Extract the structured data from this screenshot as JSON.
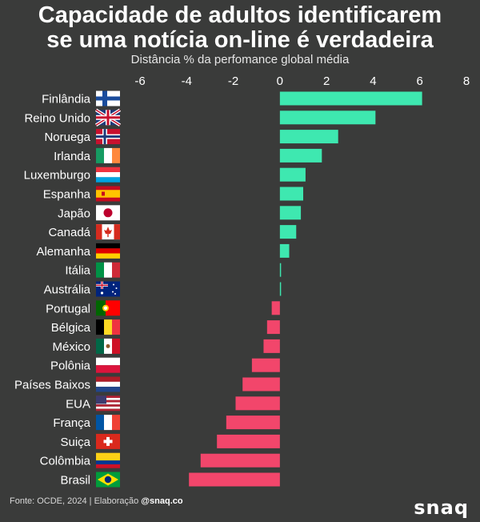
{
  "header": {
    "title_line1": "Capacidade de adultos identificarem",
    "title_line2": "se uma notícia on-line é verdadeira"
  },
  "footer": {
    "source_prefix": "Fonte: OCDE, 2024 | Elaboração",
    "source_handle": "@snaq.co",
    "brand": "snaq"
  },
  "colors": {
    "background": "#3a3b3a",
    "positive": "#3ee8b0",
    "negative": "#f2466b"
  },
  "chart_data": {
    "type": "bar",
    "orientation": "horizontal",
    "title": "Capacidade de adultos identificarem se uma notícia on-line é verdadeira",
    "subtitle": "Distância % da perfomance global média",
    "x_ticks": [
      -6,
      -4,
      -2,
      0,
      2,
      4,
      6,
      8
    ],
    "xlim": [
      -6,
      8
    ],
    "categories": [
      "Finlândia",
      "Reino Unido",
      "Noruega",
      "Irlanda",
      "Luxemburgo",
      "Espanha",
      "Japão",
      "Canadá",
      "Alemanha",
      "Itália",
      "Austrália",
      "Portugal",
      "Bélgica",
      "México",
      "Polônia",
      "Países Baixos",
      "EUA",
      "França",
      "Suiça",
      "Colômbia",
      "Brasil"
    ],
    "values": [
      6.1,
      4.1,
      2.5,
      1.8,
      1.1,
      1.0,
      0.9,
      0.7,
      0.4,
      0.05,
      0.05,
      -0.35,
      -0.55,
      -0.7,
      -1.2,
      -1.6,
      -1.9,
      -2.3,
      -2.7,
      -3.4,
      -3.9
    ],
    "flags": [
      "flag-finland-icon",
      "flag-uk-icon",
      "flag-norway-icon",
      "flag-ireland-icon",
      "flag-luxembourg-icon",
      "flag-spain-icon",
      "flag-japan-icon",
      "flag-canada-icon",
      "flag-germany-icon",
      "flag-italy-icon",
      "flag-australia-icon",
      "flag-portugal-icon",
      "flag-belgium-icon",
      "flag-mexico-icon",
      "flag-poland-icon",
      "flag-netherlands-icon",
      "flag-usa-icon",
      "flag-france-icon",
      "flag-switzerland-icon",
      "flag-colombia-icon",
      "flag-brazil-icon"
    ],
    "grid": false,
    "legend": "none"
  }
}
